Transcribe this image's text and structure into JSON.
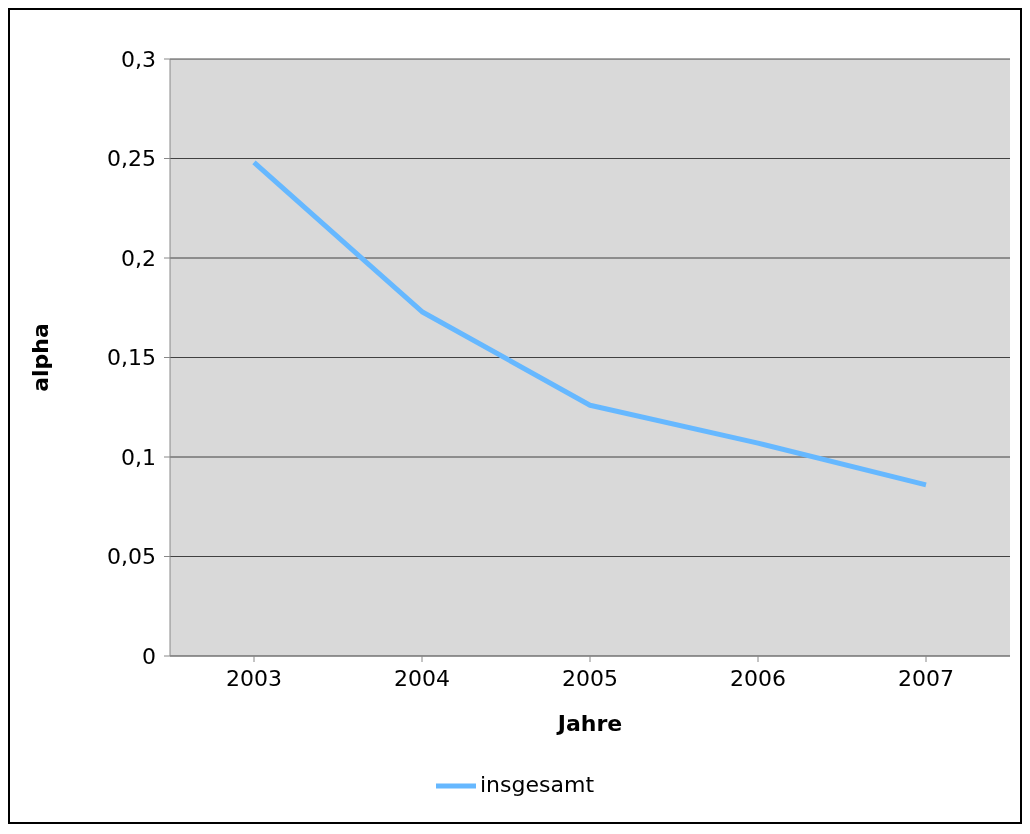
{
  "chart_data": {
    "type": "line",
    "xlabel": "Jahre",
    "ylabel": "alpha",
    "categories": [
      "2003",
      "2004",
      "2005",
      "2006",
      "2007"
    ],
    "series": [
      {
        "name": "insgesamt",
        "color": "#66b8ff",
        "values": [
          0.248,
          0.173,
          0.126,
          0.107,
          0.086
        ]
      }
    ],
    "ylim": [
      0,
      0.3
    ],
    "yticks": [
      0,
      {
        "value": 0.05,
        "label": "0,05"
      },
      {
        "value": 0.1,
        "label": "0,1"
      },
      {
        "value": 0.15,
        "label": "0,15"
      },
      {
        "value": 0.2,
        "label": "0,2"
      },
      {
        "value": 0.25,
        "label": "0,25"
      },
      {
        "value": 0.3,
        "label": "0,3"
      }
    ],
    "grid": "y",
    "legend": "bottom",
    "marker": "none",
    "line_style": "solid"
  }
}
